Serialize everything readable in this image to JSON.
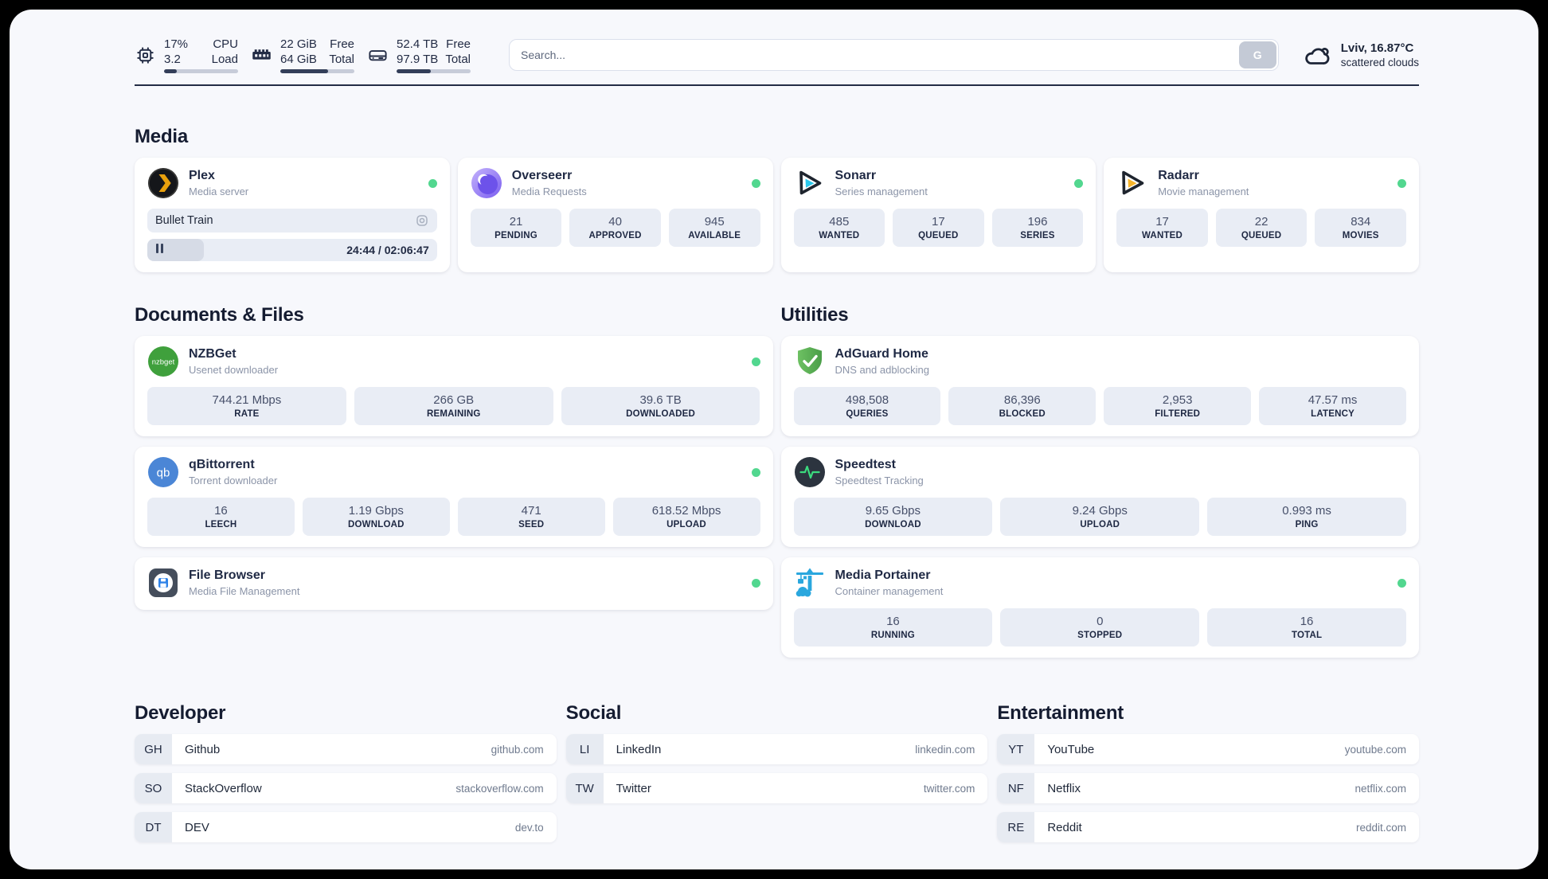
{
  "header": {
    "metrics": [
      {
        "id": "cpu",
        "value1": "17%",
        "value2": "3.2",
        "label1": "CPU",
        "label2": "Load",
        "progress": 17
      },
      {
        "id": "memory",
        "value1": "22 GiB",
        "value2": "64 GiB",
        "label1": "Free",
        "label2": "Total",
        "progress": 65
      },
      {
        "id": "disk",
        "value1": "52.4 TB",
        "value2": "97.9 TB",
        "label1": "Free",
        "label2": "Total",
        "progress": 46
      }
    ],
    "search": {
      "placeholder": "Search...",
      "button": "G"
    },
    "weather": {
      "title": "Lviv, 16.87°C",
      "condition": "scattered clouds"
    }
  },
  "media": {
    "title": "Media",
    "plex": {
      "name": "Plex",
      "subtitle": "Media server",
      "now_playing": "Bullet Train",
      "time_display": "24:44 / 02:06:47",
      "progress_pct": 19.5
    },
    "overseerr": {
      "name": "Overseerr",
      "subtitle": "Media Requests",
      "stats": [
        {
          "value": "21",
          "label": "PENDING"
        },
        {
          "value": "40",
          "label": "APPROVED"
        },
        {
          "value": "945",
          "label": "AVAILABLE"
        }
      ]
    },
    "sonarr": {
      "name": "Sonarr",
      "subtitle": "Series management",
      "stats": [
        {
          "value": "485",
          "label": "WANTED"
        },
        {
          "value": "17",
          "label": "QUEUED"
        },
        {
          "value": "196",
          "label": "SERIES"
        }
      ]
    },
    "radarr": {
      "name": "Radarr",
      "subtitle": "Movie management",
      "stats": [
        {
          "value": "17",
          "label": "WANTED"
        },
        {
          "value": "22",
          "label": "QUEUED"
        },
        {
          "value": "834",
          "label": "MOVIES"
        }
      ]
    }
  },
  "documents": {
    "title": "Documents & Files",
    "nzbget": {
      "name": "NZBGet",
      "subtitle": "Usenet downloader",
      "icon_text": "nzbget",
      "stats": [
        {
          "value": "744.21 Mbps",
          "label": "RATE"
        },
        {
          "value": "266 GB",
          "label": "REMAINING"
        },
        {
          "value": "39.6 TB",
          "label": "DOWNLOADED"
        }
      ]
    },
    "qbittorrent": {
      "name": "qBittorrent",
      "subtitle": "Torrent downloader",
      "icon_text": "qb",
      "stats": [
        {
          "value": "16",
          "label": "LEECH"
        },
        {
          "value": "1.19 Gbps",
          "label": "DOWNLOAD"
        },
        {
          "value": "471",
          "label": "SEED"
        },
        {
          "value": "618.52 Mbps",
          "label": "UPLOAD"
        }
      ]
    },
    "filebrowser": {
      "name": "File Browser",
      "subtitle": "Media File Management"
    }
  },
  "utilities": {
    "title": "Utilities",
    "adguard": {
      "name": "AdGuard Home",
      "subtitle": "DNS and adblocking",
      "stats": [
        {
          "value": "498,508",
          "label": "QUERIES"
        },
        {
          "value": "86,396",
          "label": "BLOCKED"
        },
        {
          "value": "2,953",
          "label": "FILTERED"
        },
        {
          "value": "47.57 ms",
          "label": "LATENCY"
        }
      ]
    },
    "speedtest": {
      "name": "Speedtest",
      "subtitle": "Speedtest Tracking",
      "stats": [
        {
          "value": "9.65 Gbps",
          "label": "DOWNLOAD"
        },
        {
          "value": "9.24 Gbps",
          "label": "UPLOAD"
        },
        {
          "value": "0.993 ms",
          "label": "PING"
        }
      ]
    },
    "portainer": {
      "name": "Media Portainer",
      "subtitle": "Container management",
      "stats": [
        {
          "value": "16",
          "label": "RUNNING"
        },
        {
          "value": "0",
          "label": "STOPPED"
        },
        {
          "value": "16",
          "label": "TOTAL"
        }
      ]
    }
  },
  "links": {
    "developer": {
      "title": "Developer",
      "items": [
        {
          "initials": "GH",
          "name": "Github",
          "domain": "github.com"
        },
        {
          "initials": "SO",
          "name": "StackOverflow",
          "domain": "stackoverflow.com"
        },
        {
          "initials": "DT",
          "name": "DEV",
          "domain": "dev.to"
        }
      ]
    },
    "social": {
      "title": "Social",
      "items": [
        {
          "initials": "LI",
          "name": "LinkedIn",
          "domain": "linkedin.com"
        },
        {
          "initials": "TW",
          "name": "Twitter",
          "domain": "twitter.com"
        }
      ]
    },
    "entertainment": {
      "title": "Entertainment",
      "items": [
        {
          "initials": "YT",
          "name": "YouTube",
          "domain": "youtube.com"
        },
        {
          "initials": "NF",
          "name": "Netflix",
          "domain": "netflix.com"
        },
        {
          "initials": "RE",
          "name": "Reddit",
          "domain": "reddit.com"
        }
      ]
    }
  },
  "colors": {
    "status_online": "#52d78f",
    "progress_fill": "#333e59",
    "accent_navy": "#232c45"
  }
}
